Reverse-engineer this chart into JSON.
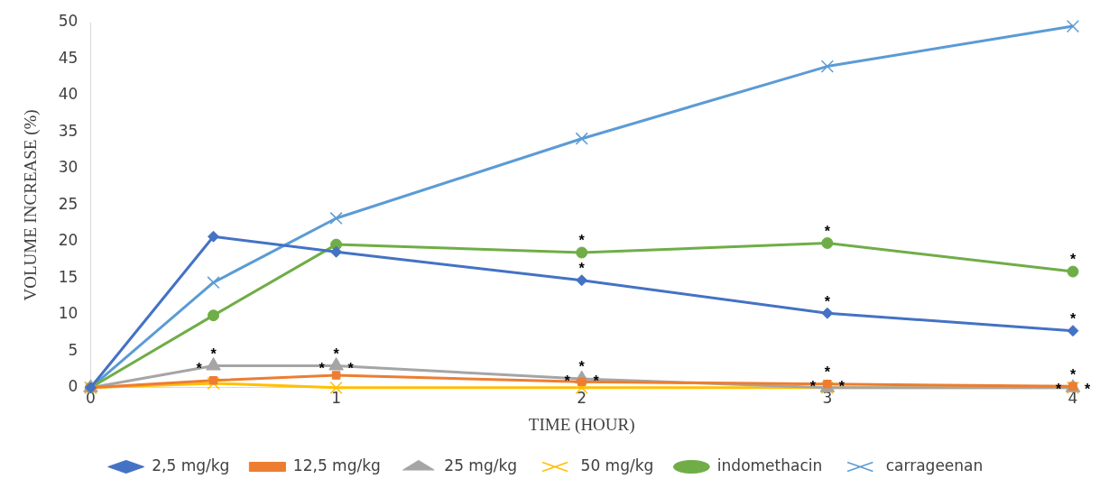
{
  "chart_data": {
    "type": "line",
    "xlabel": "TIME (HOUR)",
    "ylabel": "VOLUME INCREASE (%)",
    "x": [
      0,
      0.5,
      1,
      2,
      3,
      4
    ],
    "xlim": [
      0,
      4
    ],
    "xticks": [
      0,
      1,
      2,
      3,
      4
    ],
    "ylim": [
      0,
      50
    ],
    "yticks": [
      0,
      5,
      10,
      15,
      20,
      25,
      30,
      35,
      40,
      45,
      50
    ],
    "grid": false,
    "legend": "bottom",
    "line_style": "solid",
    "series": [
      {
        "name": "2,5 mg/kg",
        "color": "#4472c4",
        "marker": "diamond",
        "values": [
          0,
          20.7,
          18.6,
          14.7,
          10.2,
          7.8
        ]
      },
      {
        "name": "12,5 mg/kg",
        "color": "#ed7d31",
        "marker": "square",
        "values": [
          0,
          1.0,
          1.7,
          0.8,
          0.5,
          0.2
        ]
      },
      {
        "name": "25 mg/kg",
        "color": "#a5a5a5",
        "marker": "triangle",
        "values": [
          0,
          3.0,
          3.0,
          1.2,
          0,
          0
        ]
      },
      {
        "name": "50 mg/kg",
        "color": "#ffc000",
        "marker": "cross",
        "values": [
          0,
          0.6,
          0,
          0,
          0,
          0
        ]
      },
      {
        "name": "indomethacin",
        "color": "#70ad47",
        "marker": "circle",
        "values": [
          0,
          9.9,
          19.6,
          18.5,
          19.8,
          15.9
        ]
      },
      {
        "name": "carrageenan",
        "color": "#5b9bd5",
        "marker": "cross",
        "values": [
          0,
          14.4,
          23.2,
          34.1,
          44,
          49.5
        ]
      }
    ],
    "annotations": [
      {
        "text": "*",
        "x": 0.5,
        "y": 3.0
      },
      {
        "text": "*",
        "x": 0.5,
        "y": 3.0
      },
      {
        "text": "*",
        "x": 1,
        "y": 3.0
      },
      {
        "text": "*",
        "x": 1,
        "y": 3.0
      },
      {
        "text": "*",
        "x": 1,
        "y": 3.0
      },
      {
        "text": "*",
        "x": 2,
        "y": 18.5
      },
      {
        "text": "*",
        "x": 2,
        "y": 14.7
      },
      {
        "text": "*",
        "x": 2,
        "y": 1.2
      },
      {
        "text": "*",
        "x": 2,
        "y": 1.2
      },
      {
        "text": "*",
        "x": 2,
        "y": 1.2
      },
      {
        "text": "*",
        "x": 3,
        "y": 19.8
      },
      {
        "text": "*",
        "x": 3,
        "y": 10.2
      },
      {
        "text": "*",
        "x": 3,
        "y": 0.5
      },
      {
        "text": "*",
        "x": 3,
        "y": 0.5
      },
      {
        "text": "*",
        "x": 3,
        "y": 0.5
      },
      {
        "text": "*",
        "x": 4,
        "y": 15.9
      },
      {
        "text": "*",
        "x": 4,
        "y": 7.8
      },
      {
        "text": "*",
        "x": 4,
        "y": 0.2
      },
      {
        "text": "*",
        "x": 4,
        "y": 0.2
      },
      {
        "text": "*",
        "x": 4,
        "y": 0.2
      }
    ]
  }
}
